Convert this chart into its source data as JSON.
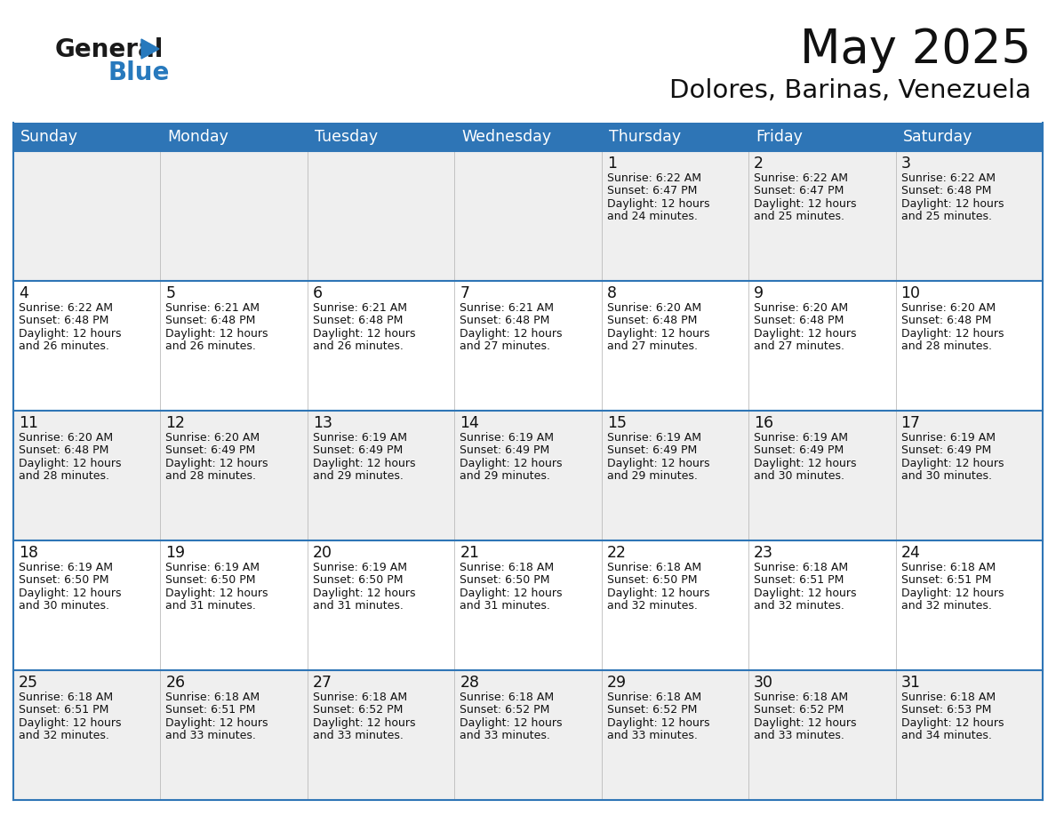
{
  "title": "May 2025",
  "subtitle": "Dolores, Barinas, Venezuela",
  "header_color": "#2E75B6",
  "header_text_color": "#FFFFFF",
  "background_color": "#FFFFFF",
  "cell_bg_even": "#EFEFEF",
  "cell_bg_odd": "#FFFFFF",
  "border_color": "#2E75B6",
  "day_names": [
    "Sunday",
    "Monday",
    "Tuesday",
    "Wednesday",
    "Thursday",
    "Friday",
    "Saturday"
  ],
  "weeks": [
    [
      {
        "day": "",
        "sunrise": "",
        "sunset": "",
        "daylight": ""
      },
      {
        "day": "",
        "sunrise": "",
        "sunset": "",
        "daylight": ""
      },
      {
        "day": "",
        "sunrise": "",
        "sunset": "",
        "daylight": ""
      },
      {
        "day": "",
        "sunrise": "",
        "sunset": "",
        "daylight": ""
      },
      {
        "day": "1",
        "sunrise": "6:22 AM",
        "sunset": "6:47 PM",
        "daylight": "12 hours and 24 minutes."
      },
      {
        "day": "2",
        "sunrise": "6:22 AM",
        "sunset": "6:47 PM",
        "daylight": "12 hours and 25 minutes."
      },
      {
        "day": "3",
        "sunrise": "6:22 AM",
        "sunset": "6:48 PM",
        "daylight": "12 hours and 25 minutes."
      }
    ],
    [
      {
        "day": "4",
        "sunrise": "6:22 AM",
        "sunset": "6:48 PM",
        "daylight": "12 hours and 26 minutes."
      },
      {
        "day": "5",
        "sunrise": "6:21 AM",
        "sunset": "6:48 PM",
        "daylight": "12 hours and 26 minutes."
      },
      {
        "day": "6",
        "sunrise": "6:21 AM",
        "sunset": "6:48 PM",
        "daylight": "12 hours and 26 minutes."
      },
      {
        "day": "7",
        "sunrise": "6:21 AM",
        "sunset": "6:48 PM",
        "daylight": "12 hours and 27 minutes."
      },
      {
        "day": "8",
        "sunrise": "6:20 AM",
        "sunset": "6:48 PM",
        "daylight": "12 hours and 27 minutes."
      },
      {
        "day": "9",
        "sunrise": "6:20 AM",
        "sunset": "6:48 PM",
        "daylight": "12 hours and 27 minutes."
      },
      {
        "day": "10",
        "sunrise": "6:20 AM",
        "sunset": "6:48 PM",
        "daylight": "12 hours and 28 minutes."
      }
    ],
    [
      {
        "day": "11",
        "sunrise": "6:20 AM",
        "sunset": "6:48 PM",
        "daylight": "12 hours and 28 minutes."
      },
      {
        "day": "12",
        "sunrise": "6:20 AM",
        "sunset": "6:49 PM",
        "daylight": "12 hours and 28 minutes."
      },
      {
        "day": "13",
        "sunrise": "6:19 AM",
        "sunset": "6:49 PM",
        "daylight": "12 hours and 29 minutes."
      },
      {
        "day": "14",
        "sunrise": "6:19 AM",
        "sunset": "6:49 PM",
        "daylight": "12 hours and 29 minutes."
      },
      {
        "day": "15",
        "sunrise": "6:19 AM",
        "sunset": "6:49 PM",
        "daylight": "12 hours and 29 minutes."
      },
      {
        "day": "16",
        "sunrise": "6:19 AM",
        "sunset": "6:49 PM",
        "daylight": "12 hours and 30 minutes."
      },
      {
        "day": "17",
        "sunrise": "6:19 AM",
        "sunset": "6:49 PM",
        "daylight": "12 hours and 30 minutes."
      }
    ],
    [
      {
        "day": "18",
        "sunrise": "6:19 AM",
        "sunset": "6:50 PM",
        "daylight": "12 hours and 30 minutes."
      },
      {
        "day": "19",
        "sunrise": "6:19 AM",
        "sunset": "6:50 PM",
        "daylight": "12 hours and 31 minutes."
      },
      {
        "day": "20",
        "sunrise": "6:19 AM",
        "sunset": "6:50 PM",
        "daylight": "12 hours and 31 minutes."
      },
      {
        "day": "21",
        "sunrise": "6:18 AM",
        "sunset": "6:50 PM",
        "daylight": "12 hours and 31 minutes."
      },
      {
        "day": "22",
        "sunrise": "6:18 AM",
        "sunset": "6:50 PM",
        "daylight": "12 hours and 32 minutes."
      },
      {
        "day": "23",
        "sunrise": "6:18 AM",
        "sunset": "6:51 PM",
        "daylight": "12 hours and 32 minutes."
      },
      {
        "day": "24",
        "sunrise": "6:18 AM",
        "sunset": "6:51 PM",
        "daylight": "12 hours and 32 minutes."
      }
    ],
    [
      {
        "day": "25",
        "sunrise": "6:18 AM",
        "sunset": "6:51 PM",
        "daylight": "12 hours and 32 minutes."
      },
      {
        "day": "26",
        "sunrise": "6:18 AM",
        "sunset": "6:51 PM",
        "daylight": "12 hours and 33 minutes."
      },
      {
        "day": "27",
        "sunrise": "6:18 AM",
        "sunset": "6:52 PM",
        "daylight": "12 hours and 33 minutes."
      },
      {
        "day": "28",
        "sunrise": "6:18 AM",
        "sunset": "6:52 PM",
        "daylight": "12 hours and 33 minutes."
      },
      {
        "day": "29",
        "sunrise": "6:18 AM",
        "sunset": "6:52 PM",
        "daylight": "12 hours and 33 minutes."
      },
      {
        "day": "30",
        "sunrise": "6:18 AM",
        "sunset": "6:52 PM",
        "daylight": "12 hours and 33 minutes."
      },
      {
        "day": "31",
        "sunrise": "6:18 AM",
        "sunset": "6:53 PM",
        "daylight": "12 hours and 34 minutes."
      }
    ]
  ],
  "logo_color_general": "#1a1a1a",
  "logo_color_blue": "#2779BD",
  "title_fontsize": 38,
  "subtitle_fontsize": 21,
  "day_name_fontsize": 12.5,
  "day_number_fontsize": 12.5,
  "cell_text_fontsize": 9.0
}
